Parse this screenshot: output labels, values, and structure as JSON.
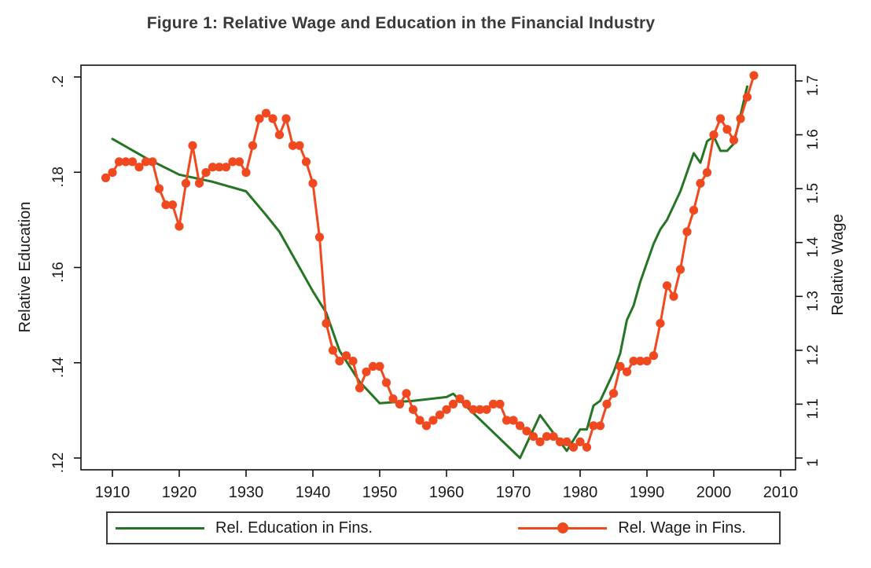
{
  "figure": {
    "title": "Figure 1: Relative Wage and Education in the Financial Industry"
  },
  "colors": {
    "education": "#257525",
    "wage": "#f1491f",
    "axis": "#111111",
    "tick_text": "#1a1a1a",
    "title_text": "#3a3a3a",
    "legend_border": "#3c3c3c",
    "background": "#ffffff"
  },
  "axes": {
    "left": {
      "label": "Relative Education",
      "tick_labels": [
        ".2",
        ".18",
        ".16",
        ".14",
        ".12"
      ],
      "tick_values": [
        0.2,
        0.18,
        0.16,
        0.14,
        0.12
      ]
    },
    "right": {
      "label": "Relative Wage",
      "tick_labels": [
        "1.7",
        "1.6",
        "1.5",
        "1.4",
        "1.3",
        "1.2",
        "1.1",
        "1"
      ],
      "tick_values": [
        1.7,
        1.6,
        1.5,
        1.4,
        1.3,
        1.2,
        1.1,
        1.0
      ]
    },
    "bottom": {
      "label": "",
      "tick_labels": [
        "1910",
        "1920",
        "1930",
        "1940",
        "1950",
        "1960",
        "1970",
        "1980",
        "1990",
        "2000",
        "2010"
      ],
      "tick_values": [
        1910,
        1920,
        1930,
        1940,
        1950,
        1960,
        1970,
        1980,
        1990,
        2000,
        2010
      ]
    }
  },
  "legend": {
    "items": [
      {
        "label": "Rel. Education in Fins.",
        "series": "education",
        "marker": "line"
      },
      {
        "label": "Rel. Wage in Fins.",
        "series": "wage",
        "marker": "line-dot"
      }
    ]
  },
  "chart_data": {
    "type": "line",
    "title": "Figure 1: Relative Wage and Education in the Financial Industry",
    "xlabel": "",
    "x_range": [
      1905,
      2012
    ],
    "x_ticks": [
      1910,
      1920,
      1930,
      1940,
      1950,
      1960,
      1970,
      1980,
      1990,
      2000,
      2010
    ],
    "left_axis_label": "Relative Education",
    "left_ylim": [
      0.12,
      0.2
    ],
    "right_axis_label": "Relative Wage",
    "right_ylim": [
      1.0,
      1.7
    ],
    "grid": false,
    "legend_position": "bottom",
    "series": [
      {
        "name": "Rel. Education in Fins.",
        "axis": "left",
        "marker": "none",
        "color_key": "education",
        "x": [
          1910,
          1915,
          1920,
          1925,
          1930,
          1933,
          1935,
          1940,
          1942,
          1944,
          1947,
          1950,
          1955,
          1960,
          1961,
          1971,
          1974,
          1978,
          1980,
          1981,
          1982,
          1983,
          1984,
          1985,
          1986,
          1987,
          1988,
          1989,
          1990,
          1991,
          1992,
          1993,
          1994,
          1995,
          1996,
          1997,
          1998,
          1999,
          2000,
          2001,
          2002,
          2003,
          2004,
          2005
        ],
        "y": [
          0.187,
          0.183,
          0.1795,
          0.178,
          0.176,
          0.171,
          0.1675,
          0.155,
          0.1505,
          0.1425,
          0.136,
          0.1315,
          0.132,
          0.1328,
          0.1335,
          0.12,
          0.129,
          0.1215,
          0.126,
          0.126,
          0.131,
          0.132,
          0.135,
          0.138,
          0.142,
          0.149,
          0.152,
          0.157,
          0.161,
          0.165,
          0.168,
          0.17,
          0.173,
          0.176,
          0.18,
          0.184,
          0.182,
          0.1865,
          0.1875,
          0.1845,
          0.1845,
          0.186,
          0.192,
          0.198
        ]
      },
      {
        "name": "Rel. Wage in Fins.",
        "axis": "right",
        "marker": "circle",
        "color_key": "wage",
        "x": [
          1909,
          1910,
          1911,
          1912,
          1913,
          1914,
          1915,
          1916,
          1917,
          1918,
          1919,
          1920,
          1921,
          1922,
          1923,
          1924,
          1925,
          1926,
          1927,
          1928,
          1929,
          1930,
          1931,
          1932,
          1933,
          1934,
          1935,
          1936,
          1937,
          1938,
          1939,
          1940,
          1941,
          1942,
          1943,
          1944,
          1945,
          1946,
          1947,
          1948,
          1949,
          1950,
          1951,
          1952,
          1953,
          1954,
          1955,
          1956,
          1957,
          1958,
          1959,
          1960,
          1961,
          1962,
          1963,
          1964,
          1965,
          1966,
          1967,
          1968,
          1969,
          1970,
          1971,
          1972,
          1973,
          1974,
          1975,
          1976,
          1977,
          1978,
          1979,
          1980,
          1981,
          1982,
          1983,
          1984,
          1985,
          1986,
          1987,
          1988,
          1989,
          1990,
          1991,
          1992,
          1993,
          1994,
          1995,
          1996,
          1997,
          1998,
          1999,
          2000,
          2001,
          2002,
          2003,
          2004,
          2005,
          2006
        ],
        "y": [
          1.52,
          1.53,
          1.55,
          1.55,
          1.55,
          1.54,
          1.55,
          1.55,
          1.5,
          1.47,
          1.47,
          1.43,
          1.51,
          1.58,
          1.51,
          1.53,
          1.54,
          1.54,
          1.54,
          1.55,
          1.55,
          1.53,
          1.58,
          1.63,
          1.64,
          1.63,
          1.6,
          1.63,
          1.58,
          1.58,
          1.55,
          1.51,
          1.41,
          1.25,
          1.2,
          1.18,
          1.19,
          1.18,
          1.13,
          1.16,
          1.17,
          1.17,
          1.14,
          1.11,
          1.1,
          1.12,
          1.09,
          1.07,
          1.06,
          1.07,
          1.08,
          1.09,
          1.1,
          1.11,
          1.1,
          1.09,
          1.09,
          1.09,
          1.1,
          1.1,
          1.07,
          1.07,
          1.06,
          1.05,
          1.04,
          1.03,
          1.04,
          1.04,
          1.03,
          1.03,
          1.02,
          1.03,
          1.02,
          1.06,
          1.06,
          1.1,
          1.12,
          1.17,
          1.16,
          1.18,
          1.18,
          1.18,
          1.19,
          1.25,
          1.32,
          1.3,
          1.35,
          1.42,
          1.46,
          1.51,
          1.53,
          1.6,
          1.63,
          1.61,
          1.59,
          1.63,
          1.67,
          1.71
        ]
      }
    ]
  }
}
